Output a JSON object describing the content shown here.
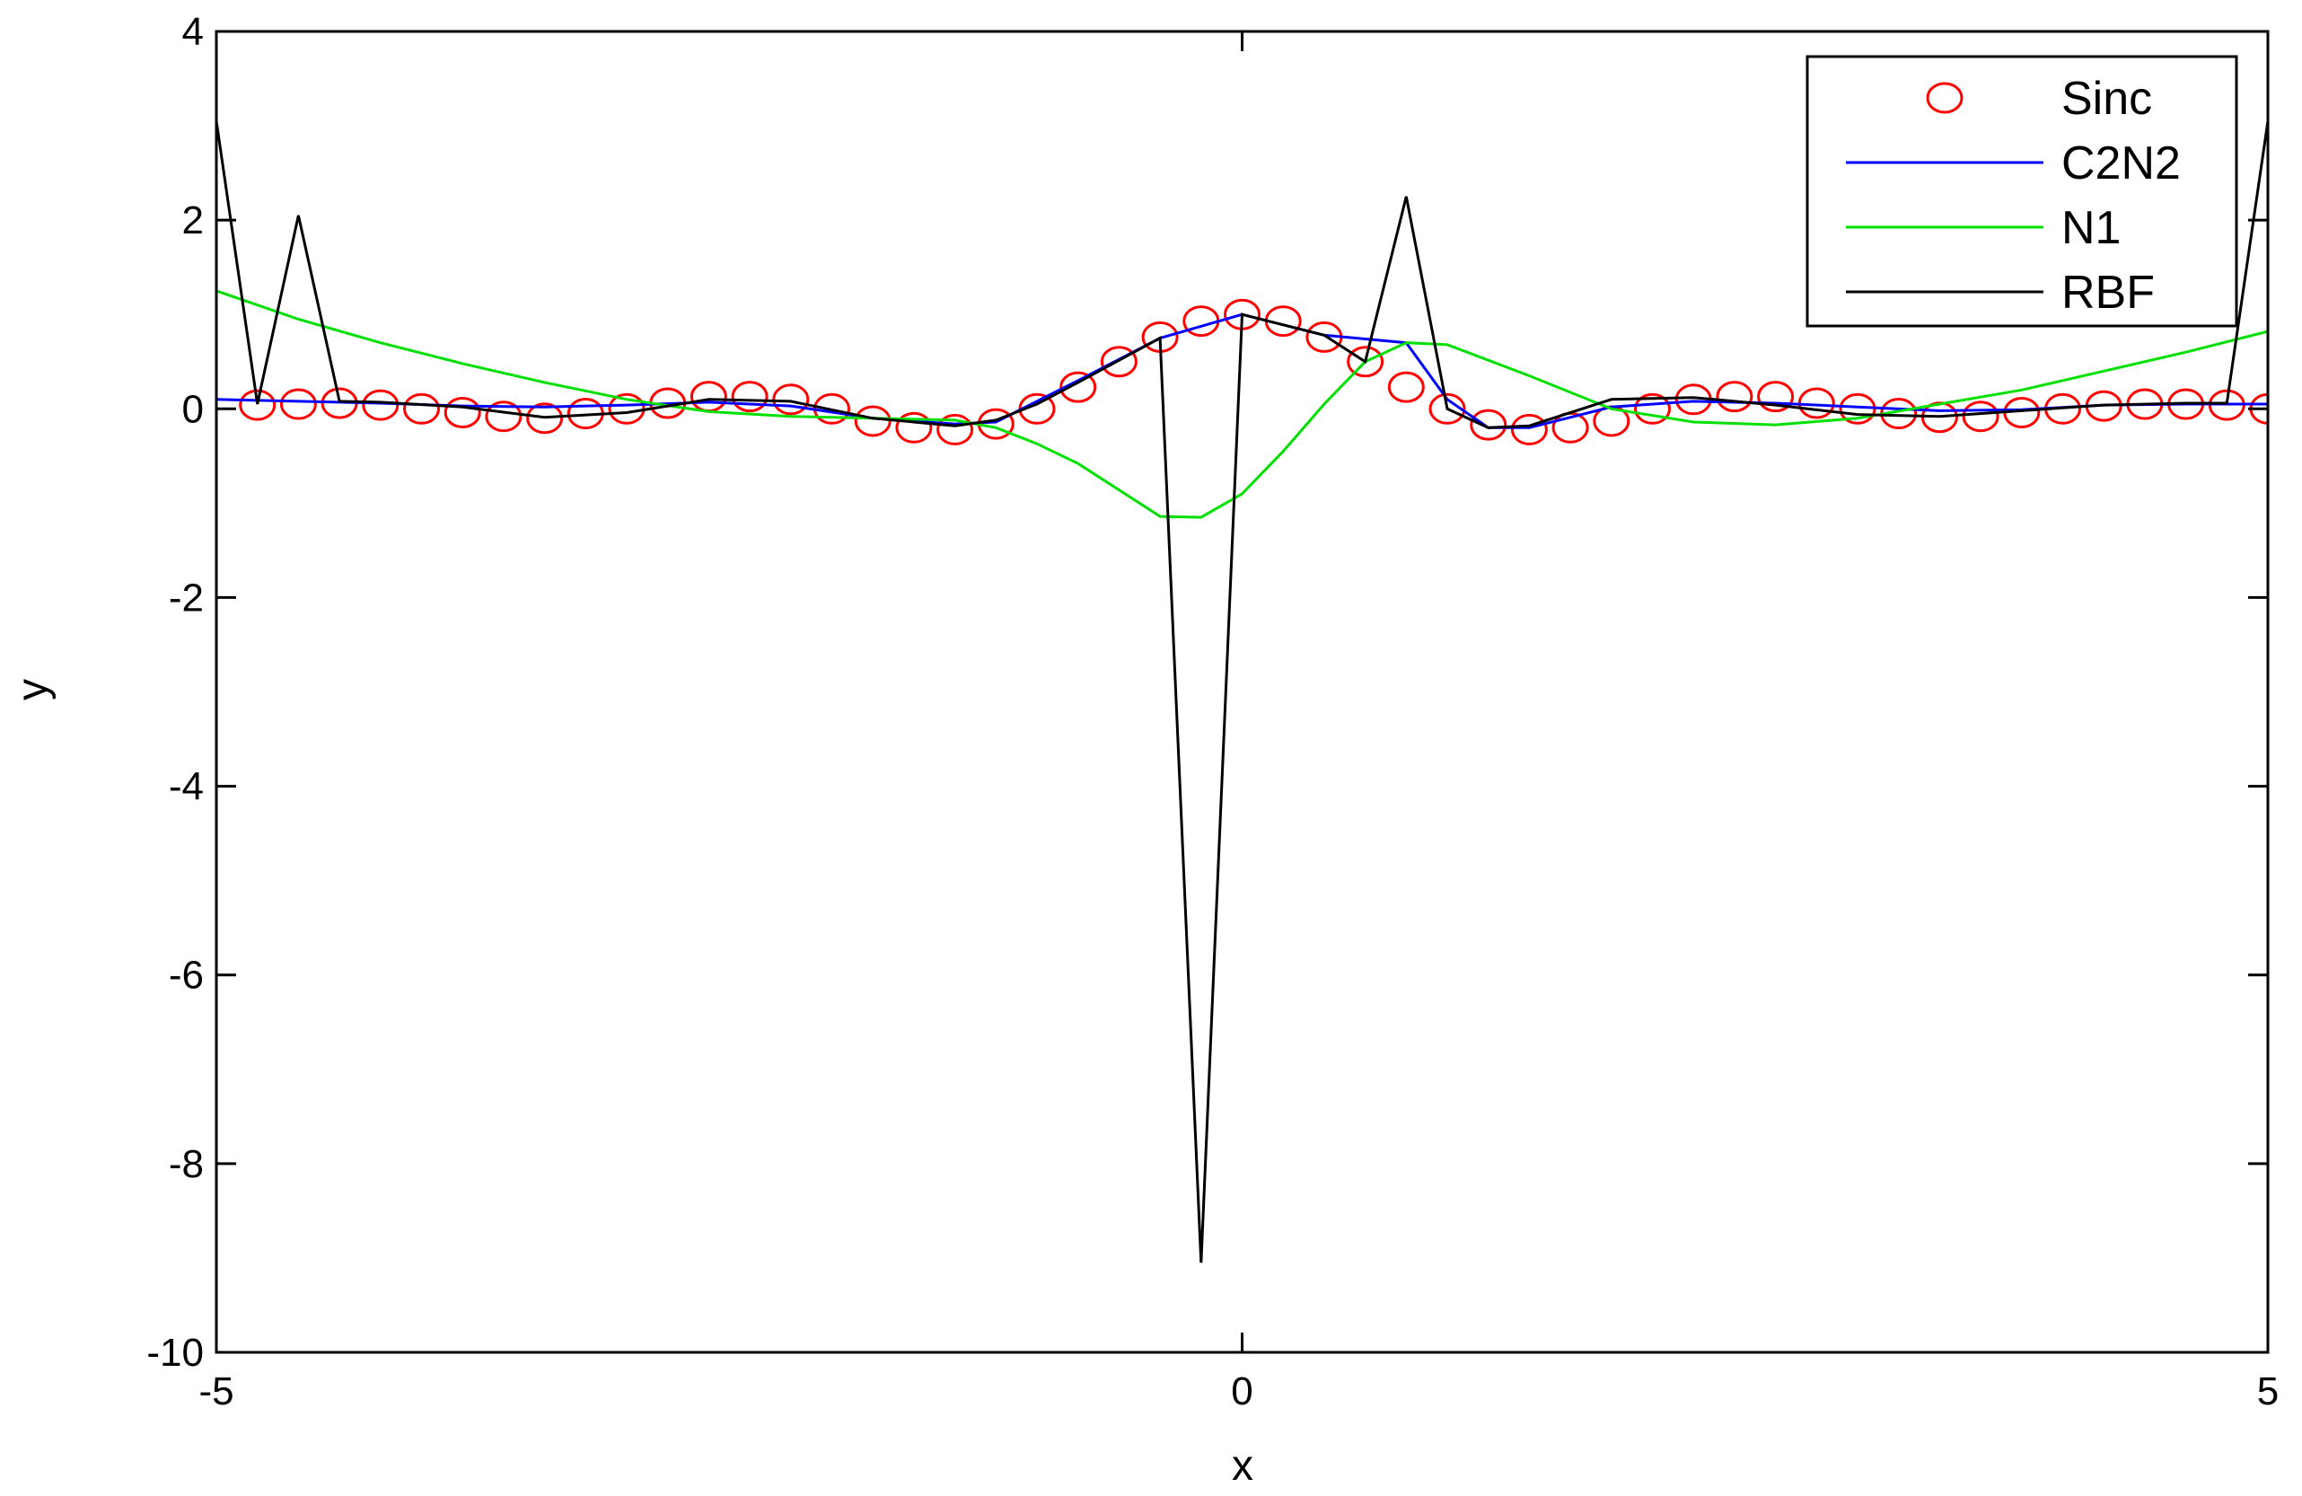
{
  "chart_data": {
    "type": "line",
    "title": "",
    "xlabel": "x",
    "ylabel": "y",
    "xlim": [
      -5,
      5
    ],
    "ylim": [
      -10,
      4
    ],
    "xticks": [
      -5,
      0,
      5
    ],
    "yticks": [
      -10,
      -8,
      -6,
      -4,
      -2,
      0,
      2,
      4
    ],
    "xtick_labels": [
      "-5",
      "0",
      "5"
    ],
    "ytick_labels": [
      "-10",
      "-8",
      "-6",
      "-4",
      "-2",
      "0",
      "2",
      "4"
    ],
    "grid": false,
    "legend_position": "top-right",
    "legend": [
      "Sinc",
      "C2N2",
      "N1",
      "RBF"
    ],
    "series": [
      {
        "name": "Sinc",
        "style": "markers",
        "marker": "circle",
        "color": "#ff0000",
        "x": [
          -4.8,
          -4.6,
          -4.4,
          -4.2,
          -4.0,
          -3.8,
          -3.6,
          -3.4,
          -3.2,
          -3.0,
          -2.8,
          -2.6,
          -2.4,
          -2.2,
          -2.0,
          -1.8,
          -1.6,
          -1.4,
          -1.2,
          -1.0,
          -0.8,
          -0.6,
          -0.4,
          -0.2,
          0.0,
          0.2,
          0.4,
          0.6,
          0.8,
          1.0,
          1.2,
          1.4,
          1.6,
          1.8,
          2.0,
          2.2,
          2.4,
          2.6,
          2.8,
          3.0,
          3.2,
          3.4,
          3.6,
          3.8,
          4.0,
          4.2,
          4.4,
          4.6,
          4.8,
          5.0
        ],
        "y": [
          0.04,
          0.05,
          0.06,
          0.04,
          0.0,
          -0.04,
          -0.08,
          -0.1,
          -0.05,
          0.0,
          0.06,
          0.13,
          0.13,
          0.1,
          0.0,
          -0.13,
          -0.2,
          -0.22,
          -0.16,
          0.0,
          0.23,
          0.5,
          0.76,
          0.93,
          1.0,
          0.93,
          0.76,
          0.5,
          0.23,
          0.0,
          -0.17,
          -0.22,
          -0.2,
          -0.13,
          0.0,
          0.1,
          0.13,
          0.13,
          0.06,
          0.0,
          -0.05,
          -0.09,
          -0.08,
          -0.04,
          0.0,
          0.03,
          0.05,
          0.05,
          0.04,
          0.0
        ]
      },
      {
        "name": "C2N2",
        "style": "line",
        "color": "#0000ff",
        "x": [
          -5.0,
          -4.6,
          -4.2,
          -3.8,
          -3.4,
          -3.0,
          -2.6,
          -2.2,
          -1.8,
          -1.4,
          -1.2,
          -0.8,
          -0.4,
          0.0,
          0.4,
          0.8,
          1.0,
          1.2,
          1.4,
          1.8,
          2.2,
          2.6,
          3.0,
          3.4,
          3.8,
          4.2,
          4.6,
          5.0
        ],
        "y": [
          0.1,
          0.08,
          0.06,
          0.03,
          0.02,
          0.04,
          0.07,
          0.03,
          -0.1,
          -0.16,
          -0.14,
          0.3,
          0.75,
          1.0,
          0.78,
          0.7,
          0.1,
          -0.2,
          -0.2,
          0.02,
          0.08,
          0.06,
          0.02,
          -0.02,
          -0.01,
          0.04,
          0.05,
          0.05
        ]
      },
      {
        "name": "N1",
        "style": "line",
        "color": "#00e000",
        "x": [
          -5.0,
          -4.6,
          -4.2,
          -3.8,
          -3.4,
          -3.0,
          -2.6,
          -2.2,
          -1.8,
          -1.4,
          -1.2,
          -1.0,
          -0.8,
          -0.6,
          -0.4,
          -0.2,
          0.0,
          0.2,
          0.4,
          0.6,
          0.8,
          1.0,
          1.4,
          1.8,
          2.2,
          2.6,
          3.0,
          3.4,
          3.8,
          4.2,
          4.6,
          5.0
        ],
        "y": [
          1.25,
          0.95,
          0.7,
          0.48,
          0.28,
          0.1,
          -0.03,
          -0.08,
          -0.1,
          -0.12,
          -0.2,
          -0.37,
          -0.58,
          -0.86,
          -1.14,
          -1.15,
          -0.9,
          -0.45,
          0.05,
          0.5,
          0.7,
          0.68,
          0.35,
          0.0,
          -0.14,
          -0.17,
          -0.1,
          0.05,
          0.2,
          0.4,
          0.6,
          0.82
        ]
      },
      {
        "name": "RBF",
        "style": "line",
        "color": "#000000",
        "x": [
          -5.0,
          -4.8,
          -4.6,
          -4.4,
          -4.2,
          -3.8,
          -3.4,
          -3.0,
          -2.6,
          -2.2,
          -1.8,
          -1.4,
          -1.2,
          -1.0,
          -0.8,
          -0.4,
          -0.2,
          0.0,
          0.4,
          0.6,
          0.8,
          1.0,
          1.2,
          1.4,
          1.8,
          2.2,
          2.6,
          3.0,
          3.4,
          3.8,
          4.2,
          4.6,
          4.8,
          5.0
        ],
        "y": [
          3.05,
          0.05,
          2.05,
          0.08,
          0.07,
          0.02,
          -0.09,
          -0.04,
          0.1,
          0.08,
          -0.1,
          -0.18,
          -0.12,
          0.05,
          0.28,
          0.75,
          -9.05,
          1.0,
          0.78,
          0.5,
          2.25,
          0.0,
          -0.2,
          -0.18,
          0.1,
          0.12,
          0.04,
          -0.06,
          -0.08,
          -0.02,
          0.04,
          0.06,
          0.06,
          3.05
        ]
      }
    ]
  }
}
